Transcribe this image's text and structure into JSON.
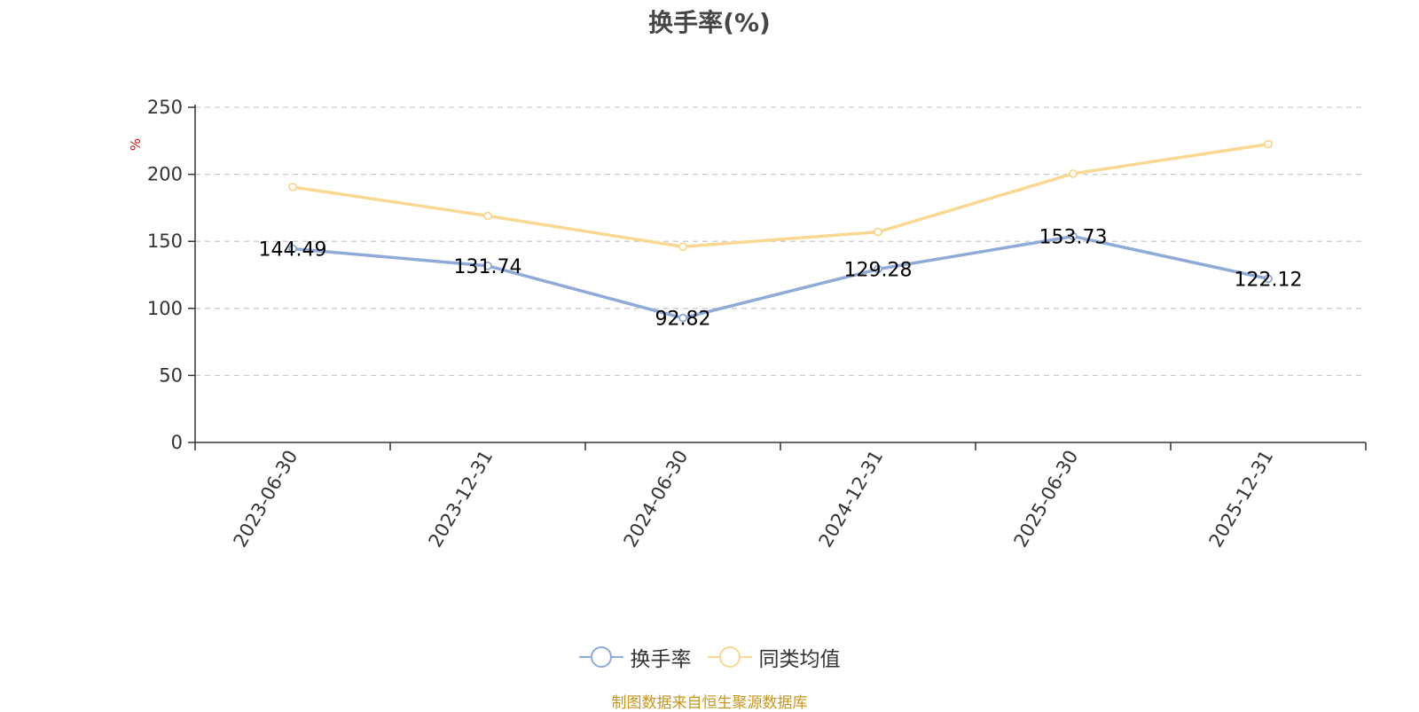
{
  "chart_data": {
    "type": "line",
    "title": "换手率(%)",
    "ylabel": "%",
    "xlabel": "",
    "ylim": [
      0,
      250
    ],
    "yticks": [
      0,
      50,
      100,
      150,
      200,
      250
    ],
    "categories": [
      "2023-06-30",
      "2023-12-31",
      "2024-06-30",
      "2024-12-31",
      "2025-06-30",
      "2025-12-31"
    ],
    "series": [
      {
        "name": "换手率",
        "color": "#8eaad8",
        "values": [
          144.49,
          131.74,
          92.82,
          129.28,
          153.73,
          122.12
        ],
        "labels": [
          "144.49",
          "131.74",
          "92.82",
          "129.28",
          "153.73",
          "122.12"
        ]
      },
      {
        "name": "同类均值",
        "color": "#fad892",
        "values": [
          190.5,
          169,
          146,
          157,
          200.5,
          222.5
        ]
      }
    ],
    "grid": true,
    "legend_position": "bottom-center"
  },
  "source_note": "制图数据来自恒生聚源数据库"
}
